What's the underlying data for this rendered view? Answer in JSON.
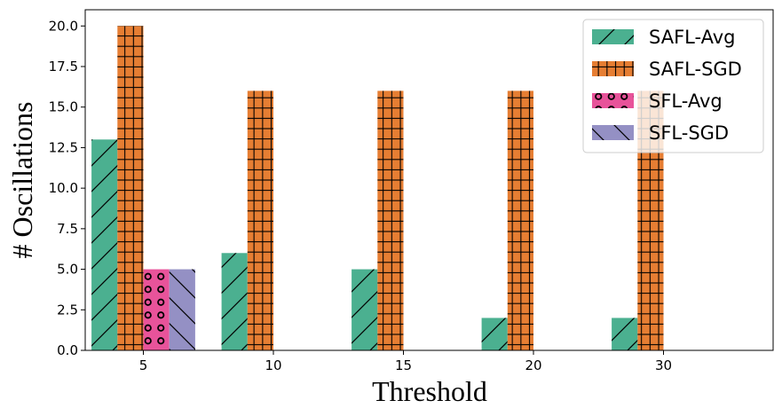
{
  "chart_data": {
    "type": "bar",
    "title": "",
    "xlabel": "Threshold",
    "ylabel": "# Oscillations",
    "categories": [
      "5",
      "10",
      "15",
      "20",
      "30"
    ],
    "ylim": [
      0,
      21
    ],
    "yticks": [
      "0.0",
      "2.5",
      "5.0",
      "7.5",
      "10.0",
      "12.5",
      "15.0",
      "17.5",
      "20.0"
    ],
    "grid": false,
    "legend_position": "top-right",
    "series": [
      {
        "name": "SAFL-Avg",
        "color": "#4bb090",
        "hatch": "diagonal-forward",
        "values": [
          13,
          6,
          5,
          2,
          2
        ]
      },
      {
        "name": "SAFL-SGD",
        "color": "#e67e33",
        "hatch": "grid",
        "values": [
          20,
          16,
          16,
          16,
          16
        ]
      },
      {
        "name": "SFL-Avg",
        "color": "#e8539a",
        "hatch": "circles",
        "values": [
          5,
          0,
          0,
          0,
          0
        ]
      },
      {
        "name": "SFL-SGD",
        "color": "#9490c4",
        "hatch": "diagonal-back",
        "values": [
          5,
          0,
          0,
          0,
          0
        ]
      }
    ]
  }
}
